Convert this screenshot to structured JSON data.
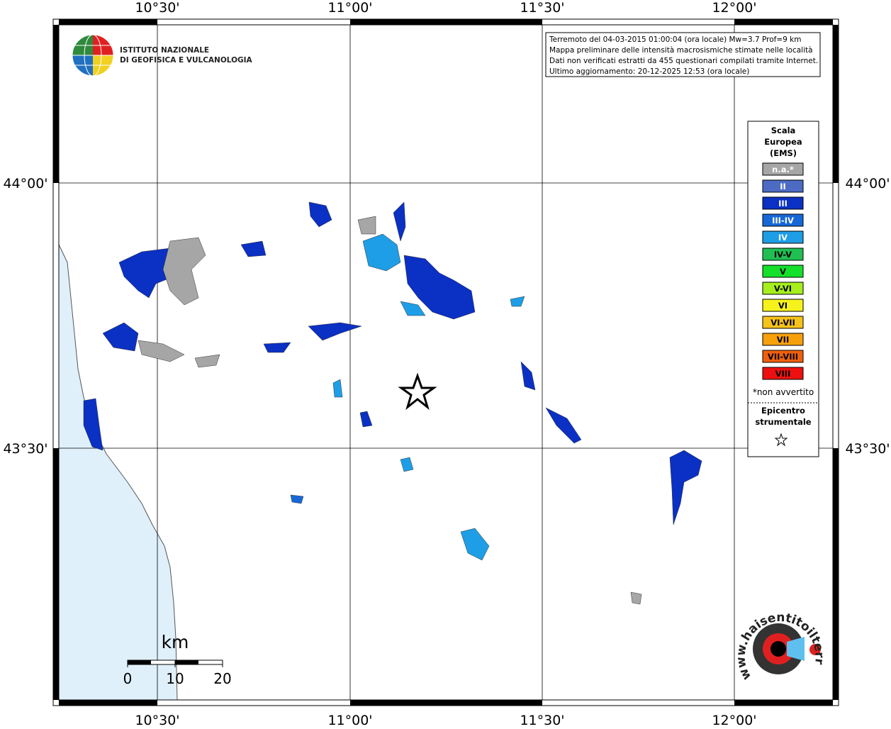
{
  "map": {
    "x_labels": [
      "10°30'",
      "11°00'",
      "11°30'",
      "12°00'"
    ],
    "y_labels": [
      "44°00'",
      "43°30'"
    ],
    "logo": [
      "ISTITUTO NAZIONALE",
      "DI GEOFISICA E VULCANOLOGIA"
    ],
    "info": [
      "Terremoto del 04-03-2015 01:00:04 (ora locale) Mw=3.7 Prof=9 km",
      "Mappa preliminare delle intensità macrosismiche stimate nelle località",
      "Dati non verificati estratti da 455 questionari compilati tramite Internet.",
      "Ultimo aggiornamento: 20-12-2025 12:53 (ora locale)"
    ],
    "legend": {
      "title": [
        "Scala",
        "Europea",
        "(EMS)"
      ],
      "classes": [
        {
          "label": "n.a.*",
          "color": "#a6a6a6"
        },
        {
          "label": "II",
          "color": "#4c6cc4"
        },
        {
          "label": "III",
          "color": "#0a30c4"
        },
        {
          "label": "III-IV",
          "color": "#1668d8"
        },
        {
          "label": "IV",
          "color": "#1e9ee6"
        },
        {
          "label": "IV-V",
          "color": "#1fbf52"
        },
        {
          "label": "V",
          "color": "#14e02c"
        },
        {
          "label": "V-VI",
          "color": "#a6ee1c"
        },
        {
          "label": "VI",
          "color": "#f6f21c"
        },
        {
          "label": "VI-VII",
          "color": "#f6c21c"
        },
        {
          "label": "VII",
          "color": "#f6a00c"
        },
        {
          "label": "VII-VIII",
          "color": "#f0600c"
        },
        {
          "label": "VIII",
          "color": "#ee1010"
        }
      ],
      "note": "*non avvertito",
      "epicenter": [
        "Epicentro",
        "strumentale"
      ]
    },
    "scale_bar": {
      "unit": "km",
      "ticks": [
        0,
        10,
        20
      ]
    },
    "watermark": "www.haisentitoilterremoto.it"
  }
}
